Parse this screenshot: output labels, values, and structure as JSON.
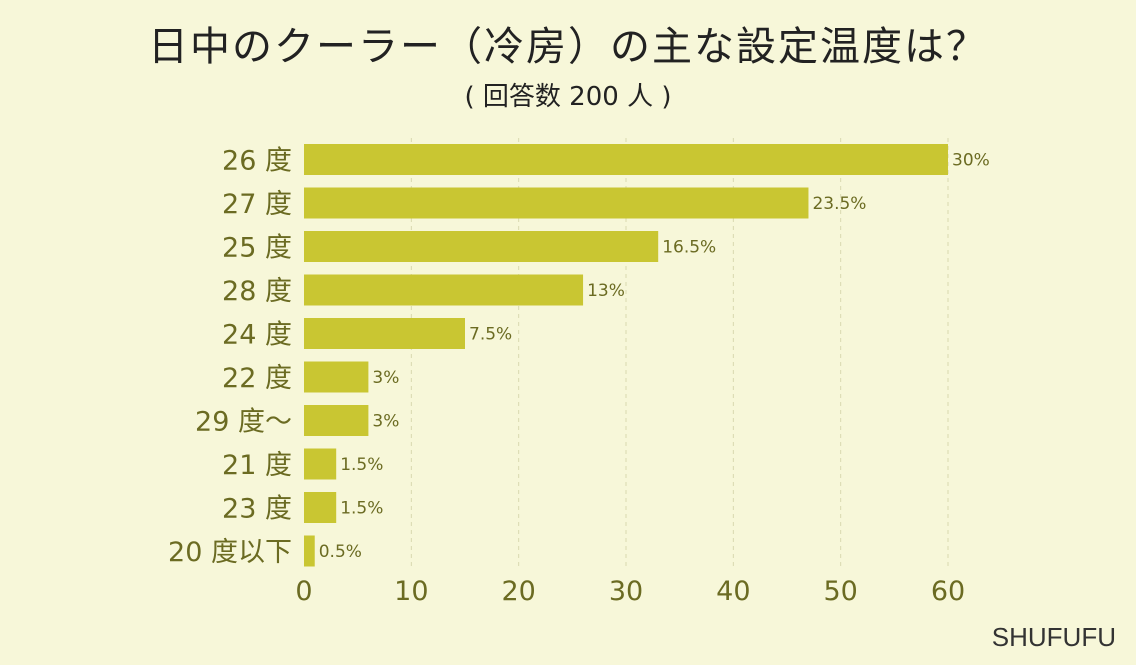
{
  "chart_data": {
    "type": "bar",
    "orientation": "horizontal",
    "title": "日中のクーラー（冷房）の主な設定温度は？",
    "subtitle": "( 回答数 200 人 )",
    "categories": [
      "26 度",
      "27 度",
      "25 度",
      "28 度",
      "24 度",
      "22 度",
      "29 度～",
      "21 度",
      "23 度",
      "20 度以下"
    ],
    "values": [
      60,
      47,
      33,
      26,
      15,
      6,
      6,
      3,
      3,
      1
    ],
    "value_labels": [
      "30%",
      "23.5%",
      "16.5%",
      "13%",
      "7.5%",
      "3%",
      "3%",
      "1.5%",
      "1.5%",
      "0.5%"
    ],
    "xlim": [
      0,
      60
    ],
    "xticks": [
      0,
      10,
      20,
      30,
      40,
      50,
      60
    ],
    "xlabel": "",
    "ylabel": "",
    "grid": "vertical-dashed",
    "bar_color": "#c9c632"
  },
  "brand": "SHUFUFU"
}
